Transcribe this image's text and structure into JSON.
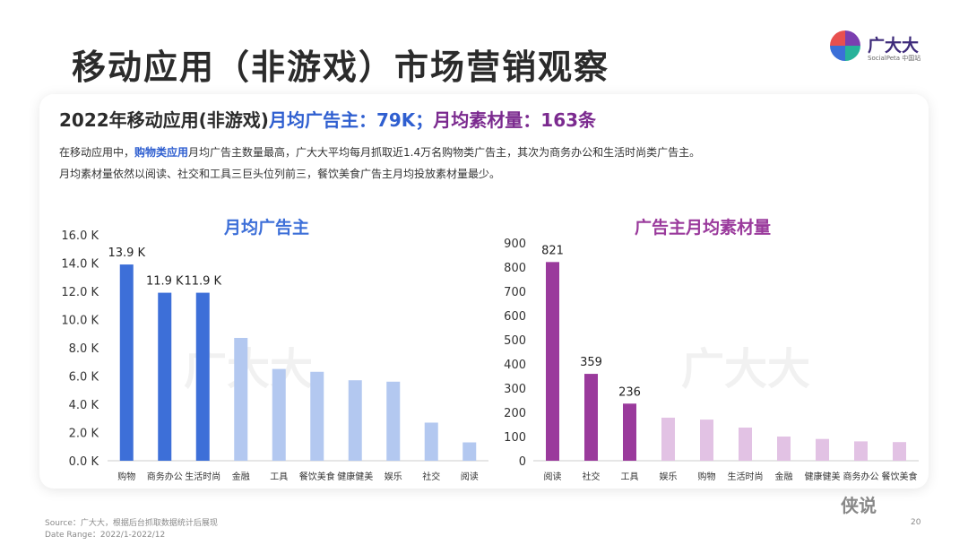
{
  "title": "移动应用（非游戏）市场营销观察",
  "logo": {
    "name": "广大大",
    "sub": "SocialPeta 中国站"
  },
  "headline": {
    "part1": "2022年移动应用(非游戏)",
    "part2": "月均广告主：79K；",
    "part3": "月均素材量：163条"
  },
  "description": {
    "line1_pre": "在移动应用中，",
    "line1_highlight": "购物类应用",
    "line1_post": "月均广告主数量最高，广大大平均每月抓取近1.4万名购物类广告主，其次为商务办公和生活时尚类广告主。",
    "line2": "月均素材量依然以阅读、社交和工具三巨头位列前三，餐饮美食广告主月均投放素材量最少。"
  },
  "chart_data": [
    {
      "type": "bar",
      "title": "月均广告主",
      "categories": [
        "购物",
        "商务办公",
        "生活时尚",
        "金融",
        "工具",
        "餐饮美食",
        "健康健美",
        "娱乐",
        "社交",
        "阅读"
      ],
      "values": [
        13.9,
        11.9,
        11.9,
        8.7,
        6.5,
        6.3,
        5.7,
        5.6,
        2.7,
        1.3
      ],
      "data_labels": [
        "13.9 K",
        "11.9 K",
        "11.9 K",
        "",
        "",
        "",
        "",
        "",
        "",
        ""
      ],
      "yticks": [
        "0.0 K",
        "2.0 K",
        "4.0 K",
        "6.0 K",
        "8.0 K",
        "10.0 K",
        "12.0 K",
        "14.0 K",
        "16.0 K"
      ],
      "ylim": [
        0,
        16
      ],
      "colors": {
        "highlight": "#3d6fd8",
        "normal": "#b3c8f0",
        "title": "#3d6fd8"
      },
      "highlight_count": 3
    },
    {
      "type": "bar",
      "title": "广告主月均素材量",
      "categories": [
        "阅读",
        "社交",
        "工具",
        "娱乐",
        "购物",
        "生活时尚",
        "金融",
        "健康健美",
        "商务办公",
        "餐饮美食"
      ],
      "values": [
        821,
        359,
        236,
        178,
        170,
        137,
        100,
        90,
        80,
        77
      ],
      "data_labels": [
        "821",
        "359",
        "236",
        "",
        "",
        "",
        "",
        "",
        "",
        ""
      ],
      "yticks": [
        "0",
        "100",
        "200",
        "300",
        "400",
        "500",
        "600",
        "700",
        "800",
        "900"
      ],
      "ylim": [
        0,
        900
      ],
      "colors": {
        "highlight": "#9a3a9c",
        "normal": "#e2c2e4",
        "title": "#9a3a9c"
      },
      "highlight_count": 3
    }
  ],
  "watermark": "广大大",
  "footer": {
    "source": "Source：广大大，根据后台抓取数据统计后展现",
    "date_range": "Date Range：2022/1-2022/12"
  },
  "page_number": "20",
  "wechat_mark": "侠说"
}
